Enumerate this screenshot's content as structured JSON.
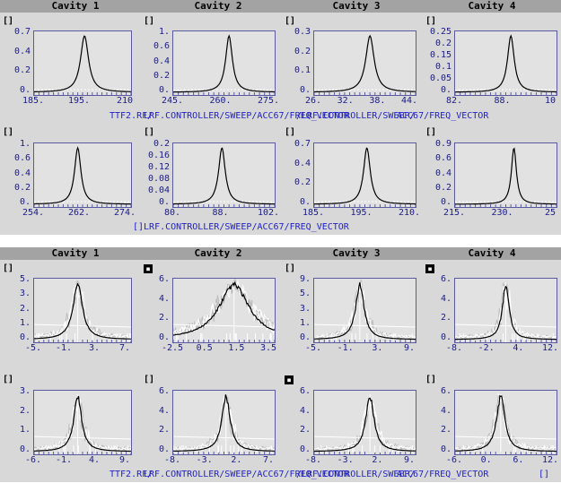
{
  "panels": [
    {
      "headers": [
        "Cavity 1",
        "Cavity 2",
        "Cavity 3",
        "Cavity 4"
      ],
      "path_labels": [
        "TTF2.RF/",
        "LRF.CONTROLLER/SWEEP/ACC67/FREQ_VECTOR",
        "/LRF.CONTROLLER/SWEEP/",
        "ACC67/FREQ_VECTOR",
        "[]LRF.CONTROLLER/SWEEP/ACC67/FREQ_VECTOR"
      ],
      "plots": [
        {
          "marker": "[]",
          "yticks": [
            "0.7",
            "0.4",
            "0.2",
            "0."
          ],
          "xticks": [
            "185.",
            "195.",
            "210"
          ],
          "style": "clean",
          "peak": 0.52,
          "width": 0.05
        },
        {
          "marker": "[]",
          "yticks": [
            "1.",
            "0.6",
            "0.4",
            "0.2",
            "0."
          ],
          "xticks": [
            "245.",
            "260.",
            "275."
          ],
          "style": "clean",
          "peak": 0.55,
          "width": 0.04
        },
        {
          "marker": "[]",
          "yticks": [
            "0.3",
            "0.2",
            "0.1",
            "0."
          ],
          "xticks": [
            "26.",
            "32.",
            "38.",
            "44."
          ],
          "style": "clean",
          "peak": 0.55,
          "width": 0.05
        },
        {
          "marker": "[]",
          "yticks": [
            "0.25",
            "0.2",
            "0.15",
            "0.1",
            "0.05",
            "0."
          ],
          "xticks": [
            "82.",
            "88.",
            "10"
          ],
          "style": "clean",
          "peak": 0.55,
          "width": 0.04
        },
        {
          "marker": "[]",
          "yticks": [
            "1.",
            "0.6",
            "0.4",
            "0.2",
            "0."
          ],
          "xticks": [
            "254.",
            "262.",
            "274."
          ],
          "style": "clean",
          "peak": 0.45,
          "width": 0.04
        },
        {
          "marker": "[]",
          "yticks": [
            "0.2",
            "0.16",
            "0.12",
            "0.08",
            "0.04",
            "0."
          ],
          "xticks": [
            "80.",
            "88.",
            "102."
          ],
          "style": "clean",
          "peak": 0.48,
          "width": 0.04
        },
        {
          "marker": "[]",
          "yticks": [
            "0.7",
            "0.4",
            "0.2",
            "0."
          ],
          "xticks": [
            "185.",
            "195.",
            "210."
          ],
          "style": "clean",
          "peak": 0.52,
          "width": 0.04
        },
        {
          "marker": "[]",
          "yticks": [
            "0.9",
            "0.6",
            "0.4",
            "0.2",
            "0."
          ],
          "xticks": [
            "215.",
            "230.",
            "25"
          ],
          "style": "clean",
          "peak": 0.58,
          "width": 0.03
        }
      ]
    },
    {
      "headers": [
        "Cavity 1",
        "Cavity 2",
        "Cavity 3",
        "Cavity 4"
      ],
      "path_labels": [
        "TTF2.RF/",
        "LRF.CONTROLLER/SWEEP/ACC67/FREQ_VECTOR",
        "/LRF.CONTROLLER/SWEEP/",
        "ACC67/FREQ_VECTOR",
        "[]"
      ],
      "plots": [
        {
          "marker": "[]",
          "yticks": [
            "5.",
            "3.",
            "2.",
            "1.",
            "0."
          ],
          "xticks": [
            "-5.",
            "-1.",
            "3.",
            "7."
          ],
          "style": "noisy",
          "peak": 0.45,
          "width": 0.06
        },
        {
          "marker": "filled",
          "yticks": [
            "6.",
            "4.",
            "2.",
            "0."
          ],
          "xticks": [
            "-2.5",
            "0.5",
            "1.5",
            "3.5"
          ],
          "style": "noisy",
          "peak": 0.6,
          "width": 0.18
        },
        {
          "marker": "[]",
          "yticks": [
            "9.",
            "5.",
            "3.",
            "1.",
            "0."
          ],
          "xticks": [
            "-5.",
            "-1.",
            "3.",
            "9."
          ],
          "style": "noisy",
          "peak": 0.45,
          "width": 0.05
        },
        {
          "marker": "filled",
          "yticks": [
            "6.",
            "4.",
            "2.",
            "0."
          ],
          "xticks": [
            "-8.",
            "-2.",
            "4.",
            "12."
          ],
          "style": "noisy",
          "peak": 0.5,
          "width": 0.04
        },
        {
          "marker": "[]",
          "yticks": [
            "3.",
            "2.",
            "1.",
            "0."
          ],
          "xticks": [
            "-6.",
            "-1.",
            "4.",
            "9."
          ],
          "style": "noisy",
          "peak": 0.45,
          "width": 0.05
        },
        {
          "marker": "[]",
          "yticks": [
            "6.",
            "4.",
            "2.",
            "0."
          ],
          "xticks": [
            "-8.",
            "-3.",
            "2.",
            "7."
          ],
          "style": "noisy",
          "peak": 0.52,
          "width": 0.05
        },
        {
          "marker": "filled",
          "yticks": [
            "6.",
            "4.",
            "2.",
            "0."
          ],
          "xticks": [
            "-8.",
            "-3.",
            "2.",
            "9."
          ],
          "style": "noisy",
          "peak": 0.55,
          "width": 0.05
        },
        {
          "marker": "[]",
          "yticks": [
            "6.",
            "4.",
            "2.",
            "0."
          ],
          "xticks": [
            "-6.",
            "0.",
            "6.",
            "12."
          ],
          "style": "noisy",
          "peak": 0.45,
          "width": 0.05
        }
      ]
    }
  ],
  "colors": {
    "header_bg": "#a3a3a3",
    "plot_bg": "#e2e2e2",
    "axis": "#5a5aa0",
    "tick_text": "#1a1a8a",
    "path_text": "#2020d0",
    "trace": "#000000",
    "noise": "#ffffff"
  }
}
